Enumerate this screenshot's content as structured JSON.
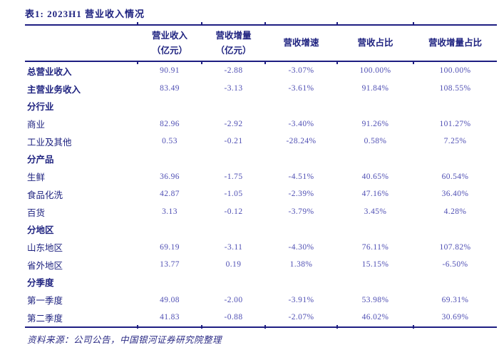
{
  "title": "表1: 2023H1 营业收入情况",
  "table": {
    "columns": [
      {
        "label": "营业收入",
        "unit": "（亿元）"
      },
      {
        "label": "营收增量",
        "unit": "（亿元）"
      },
      {
        "label": "营收增速"
      },
      {
        "label": "营收占比"
      },
      {
        "label": "营收增量占比"
      }
    ],
    "rows": [
      {
        "label": "总营业收入",
        "values": [
          "90.91",
          "-2.88",
          "-3.07%",
          "100.00%",
          "100.00%"
        ]
      },
      {
        "label": "主营业务收入",
        "values": [
          "83.49",
          "-3.13",
          "-3.61%",
          "91.84%",
          "108.55%"
        ]
      },
      {
        "label": "分行业",
        "values": [
          "",
          "",
          "",
          "",
          ""
        ]
      },
      {
        "label": "商业",
        "values": [
          "82.96",
          "-2.92",
          "-3.40%",
          "91.26%",
          "101.27%"
        ]
      },
      {
        "label": "工业及其他",
        "values": [
          "0.53",
          "-0.21",
          "-28.24%",
          "0.58%",
          "7.25%"
        ]
      },
      {
        "label": "分产品",
        "values": [
          "",
          "",
          "",
          "",
          ""
        ]
      },
      {
        "label": "生鲜",
        "values": [
          "36.96",
          "-1.75",
          "-4.51%",
          "40.65%",
          "60.54%"
        ]
      },
      {
        "label": "食品化洗",
        "values": [
          "42.87",
          "-1.05",
          "-2.39%",
          "47.16%",
          "36.40%"
        ]
      },
      {
        "label": "百货",
        "values": [
          "3.13",
          "-0.12",
          "-3.79%",
          "3.45%",
          "4.28%"
        ]
      },
      {
        "label": "分地区",
        "values": [
          "",
          "",
          "",
          "",
          ""
        ]
      },
      {
        "label": "山东地区",
        "values": [
          "69.19",
          "-3.11",
          "-4.30%",
          "76.11%",
          "107.82%"
        ]
      },
      {
        "label": "省外地区",
        "values": [
          "13.77",
          "0.19",
          "1.38%",
          "15.15%",
          "-6.50%"
        ]
      },
      {
        "label": "分季度",
        "values": [
          "",
          "",
          "",
          "",
          ""
        ]
      },
      {
        "label": "第一季度",
        "values": [
          "49.08",
          "-2.00",
          "-3.91%",
          "53.98%",
          "69.31%"
        ]
      },
      {
        "label": "第二季度",
        "values": [
          "41.83",
          "-0.88",
          "-2.07%",
          "46.02%",
          "30.69%"
        ]
      }
    ]
  },
  "source": "资料来源：公司公告，中国银河证券研究院整理",
  "colors": {
    "rule": "#1e1e82",
    "heading": "#1f2380",
    "number": "#5050b4"
  }
}
